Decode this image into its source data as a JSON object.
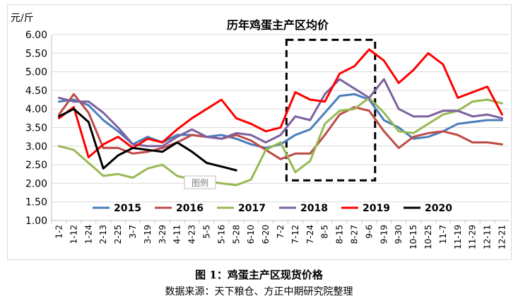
{
  "caption": "图 1：鸡蛋主产区现货价格",
  "source": "数据来源：天下粮仓、方正中期研究院整理",
  "chart_data": {
    "type": "line",
    "title": "历年鸡蛋主产区均价",
    "ylabel": "元/斤",
    "ylim": [
      1.0,
      6.0
    ],
    "yticks": [
      "1.00",
      "1.50",
      "2.00",
      "2.50",
      "3.00",
      "3.50",
      "4.00",
      "4.50",
      "5.00",
      "5.50",
      "6.00"
    ],
    "x_ticklabels": [
      "1-2",
      "1-12",
      "1-24",
      "2-13",
      "2-25",
      "3-7",
      "3-19",
      "3-29",
      "4-11",
      "4-23",
      "5-5",
      "5-16",
      "5-28",
      "6-10",
      "6-20",
      "7-2",
      "7-12",
      "7-24",
      "8-5",
      "8-15",
      "8-27",
      "9-6",
      "9-19",
      "9-30",
      "10-15",
      "10-25",
      "11-7",
      "11-19",
      "11-29",
      "12-11",
      "12-21"
    ],
    "grid": true,
    "legend_position": "bottom",
    "annotation_label": "图例",
    "highlight_box": {
      "x_start": 15.9,
      "x_end": 21.9,
      "y_bottom": 2.08,
      "y_top": 5.86
    },
    "series": [
      {
        "name": "2015",
        "color": "#4a7ebb",
        "values": [
          4.2,
          4.25,
          4.1,
          3.7,
          3.4,
          3.05,
          3.25,
          3.1,
          3.3,
          3.3,
          3.25,
          3.3,
          3.2,
          3.05,
          2.95,
          3.05,
          3.3,
          3.45,
          3.9,
          4.35,
          4.4,
          4.25,
          3.7,
          3.5,
          3.2,
          3.25,
          3.4,
          3.6,
          3.65,
          3.7,
          3.7
        ]
      },
      {
        "name": "2016",
        "color": "#be4b48",
        "values": [
          3.85,
          4.4,
          3.9,
          2.95,
          2.95,
          2.8,
          2.85,
          2.95,
          3.1,
          3.3,
          3.25,
          3.2,
          3.3,
          3.15,
          2.9,
          2.65,
          2.8,
          2.8,
          3.3,
          3.85,
          4.05,
          3.95,
          3.4,
          2.95,
          3.25,
          3.35,
          3.4,
          3.3,
          3.1,
          3.1,
          3.05
        ]
      },
      {
        "name": "2017",
        "color": "#98b954",
        "values": [
          3.0,
          2.9,
          2.55,
          2.2,
          2.25,
          2.15,
          2.4,
          2.5,
          2.2,
          2.1,
          2.05,
          2.0,
          1.95,
          2.1,
          2.9,
          3.1,
          2.3,
          2.6,
          3.6,
          3.95,
          4.0,
          4.3,
          3.9,
          3.4,
          3.35,
          3.6,
          3.85,
          3.95,
          4.2,
          4.25,
          4.15
        ]
      },
      {
        "name": "2018",
        "color": "#7d60a0",
        "values": [
          4.3,
          4.2,
          4.2,
          3.9,
          3.5,
          3.05,
          3.0,
          3.0,
          3.25,
          3.45,
          3.25,
          3.2,
          3.35,
          3.3,
          3.1,
          3.3,
          3.8,
          3.7,
          4.4,
          4.8,
          4.55,
          4.3,
          4.8,
          4.0,
          3.8,
          3.8,
          3.95,
          3.95,
          3.8,
          3.85,
          3.75
        ]
      },
      {
        "name": "2019",
        "color": "#ff0000",
        "values": [
          3.75,
          4.05,
          2.7,
          3.05,
          3.25,
          2.95,
          3.2,
          3.1,
          3.45,
          3.75,
          4.0,
          4.25,
          3.75,
          3.6,
          3.4,
          3.5,
          4.45,
          4.25,
          4.2,
          4.95,
          5.15,
          5.6,
          5.3,
          4.7,
          5.05,
          5.5,
          5.2,
          4.3,
          4.45,
          4.6,
          3.85
        ]
      },
      {
        "name": "2020",
        "color": "#000000",
        "values": [
          3.8,
          4.0,
          3.65,
          2.4,
          2.75,
          2.95,
          2.9,
          2.85,
          3.1,
          2.85,
          2.55,
          2.45,
          2.35
        ]
      }
    ]
  }
}
